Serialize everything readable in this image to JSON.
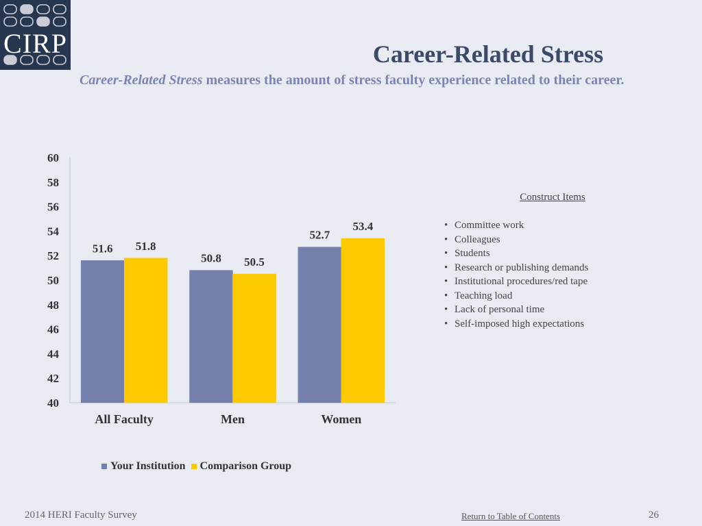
{
  "logo": {
    "text": "CIRP"
  },
  "header": {
    "title": "Career-Related Stress",
    "subtitle_emphasis": "Career-Related Stress",
    "subtitle_rest": " measures the amount of stress faculty experience related to their career."
  },
  "chart_data": {
    "type": "bar",
    "categories": [
      "All Faculty",
      "Men",
      "Women"
    ],
    "series": [
      {
        "name": "Your Institution",
        "values": [
          51.6,
          50.8,
          52.7
        ],
        "color": "#7680ad"
      },
      {
        "name": "Comparison Group",
        "values": [
          51.8,
          50.5,
          53.4
        ],
        "color": "#fdca00"
      }
    ],
    "ylim": [
      40,
      60
    ],
    "yticks": [
      40,
      42,
      44,
      46,
      48,
      50,
      52,
      54,
      56,
      58,
      60
    ],
    "title": "",
    "xlabel": "",
    "ylabel": "",
    "legend": "bottom",
    "grid": false,
    "data_labels": true
  },
  "construct": {
    "title": "Construct Items",
    "items": [
      "Committee work",
      "Colleagues",
      "Students",
      "Research or publishing demands",
      "Institutional procedures/red tape",
      "Teaching load",
      "Lack of personal time",
      "Self-imposed high expectations"
    ]
  },
  "footer": {
    "survey": "2014 HERI Faculty Survey",
    "toc_link": "Return to Table of Contents",
    "page": "26"
  }
}
